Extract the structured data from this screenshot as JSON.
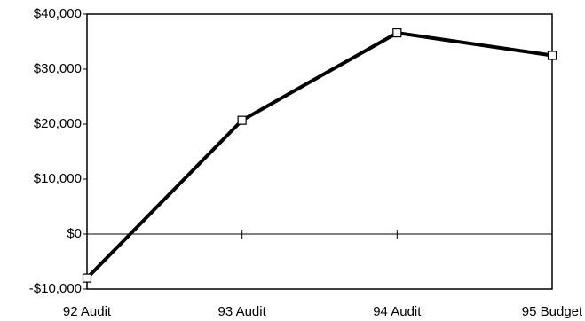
{
  "chart_data": {
    "type": "line",
    "categories": [
      "92 Audit",
      "93 Audit",
      "94 Audit",
      "95 Budget"
    ],
    "series": [
      {
        "color": "#000000",
        "values": [
          -8000,
          20700,
          36600,
          32500
        ]
      }
    ],
    "ylim": [
      -10000,
      40000
    ],
    "yticks": [
      {
        "value": -10000,
        "label": "-$10,000"
      },
      {
        "value": 0,
        "label": "$0"
      },
      {
        "value": 10000,
        "label": "$10,000"
      },
      {
        "value": 20000,
        "label": "$20,000"
      },
      {
        "value": 30000,
        "label": "$30,000"
      },
      {
        "value": 40000,
        "label": "$40,000"
      }
    ],
    "grid": false
  }
}
